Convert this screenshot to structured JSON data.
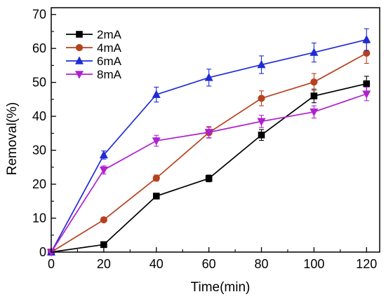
{
  "chart_data": {
    "type": "line",
    "xlabel": "Time(min)",
    "ylabel": "Removal(%)",
    "xlim": [
      0,
      125
    ],
    "ylim": [
      0,
      72
    ],
    "x_ticks": [
      0,
      20,
      40,
      60,
      80,
      100,
      120
    ],
    "y_ticks": [
      0,
      10,
      20,
      30,
      40,
      50,
      60,
      70
    ],
    "legend_position": "top-left",
    "grid": false,
    "x": [
      0,
      20,
      40,
      60,
      80,
      100,
      120
    ],
    "series": [
      {
        "name": "2mA",
        "color": "#000000",
        "marker": "square",
        "values": [
          0,
          2.2,
          16.5,
          21.7,
          34.5,
          46.0,
          49.6
        ],
        "errors": [
          0,
          0.5,
          0.8,
          1.0,
          1.6,
          2.0,
          2.2
        ]
      },
      {
        "name": "4mA",
        "color": "#b5421f",
        "marker": "circle",
        "values": [
          0,
          9.5,
          21.8,
          35.2,
          45.3,
          50.1,
          58.6
        ],
        "errors": [
          0,
          0.5,
          0.9,
          1.5,
          2.2,
          2.5,
          3.0
        ]
      },
      {
        "name": "6mA",
        "color": "#1f2bd6",
        "marker": "triangle-up",
        "values": [
          0,
          28.6,
          46.4,
          51.4,
          55.2,
          58.8,
          62.6
        ],
        "errors": [
          0,
          1.2,
          2.2,
          2.5,
          2.6,
          2.8,
          3.2
        ]
      },
      {
        "name": "8mA",
        "color": "#b020d0",
        "marker": "triangle-down",
        "values": [
          0,
          24.2,
          32.8,
          35.3,
          38.5,
          41.3,
          46.6
        ],
        "errors": [
          0,
          1.2,
          1.6,
          1.7,
          1.8,
          1.8,
          2.0
        ]
      }
    ]
  }
}
